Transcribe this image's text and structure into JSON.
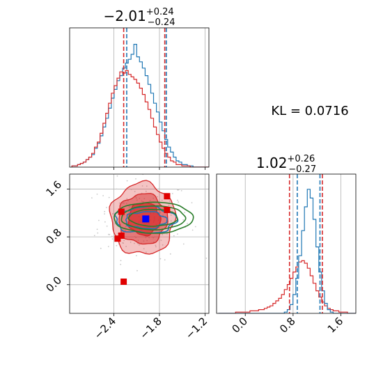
{
  "chart_data": {
    "type": "corner",
    "parameters": [
      "param_1",
      "param_2"
    ],
    "titles": [
      {
        "value": "−2.01",
        "plus": "+0.24",
        "minus": "−0.24"
      },
      {
        "value": "1.02",
        "plus": "+0.26",
        "minus": "−0.27"
      }
    ],
    "annotation": "KL = 0.0716",
    "colors": {
      "blue": "#1f77b4",
      "red": "#d62728",
      "green": "#2a7d2a",
      "grid": "#b0b0b0",
      "scatter": "#c8c8c8"
    },
    "x_ticks": {
      "param_1": {
        "values": [
          -2.4,
          -1.8,
          -1.2
        ],
        "labels": [
          "−2.4",
          "−1.8",
          "−1.2"
        ]
      },
      "param_2": {
        "values": [
          0.0,
          0.8,
          1.6
        ],
        "labels": [
          "0.0",
          "0.8",
          "1.6"
        ]
      }
    },
    "y_ticks": {
      "param_2": {
        "values": [
          0.0,
          0.8,
          1.6
        ],
        "labels": [
          "0.0",
          "0.8",
          "1.6"
        ]
      }
    },
    "ranges": {
      "param_1": [
        -2.98,
        -1.15
      ],
      "param_2": [
        -0.48,
        1.85
      ]
    },
    "grid": true,
    "marginal_1": {
      "x_start": -2.95,
      "bin_width": 0.037,
      "blue": [
        0.01,
        0.01,
        0.02,
        0.03,
        0.04,
        0.06,
        0.08,
        0.1,
        0.15,
        0.19,
        0.25,
        0.32,
        0.39,
        0.47,
        0.55,
        0.62,
        0.69,
        0.73,
        0.79,
        0.83,
        0.86,
        0.9,
        0.98,
        0.88,
        0.84,
        0.79,
        0.73,
        0.66,
        0.59,
        0.51,
        0.44,
        0.36,
        0.29,
        0.22,
        0.16,
        0.12,
        0.08,
        0.05,
        0.04,
        0.02,
        0.02,
        0.01,
        0.01,
        0.0,
        0.0,
        0.0,
        0.0,
        0.0,
        0.0
      ],
      "red": [
        0.01,
        0.01,
        0.02,
        0.03,
        0.04,
        0.06,
        0.08,
        0.11,
        0.16,
        0.2,
        0.27,
        0.35,
        0.43,
        0.51,
        0.59,
        0.65,
        0.71,
        0.76,
        0.75,
        0.77,
        0.74,
        0.72,
        0.7,
        0.67,
        0.63,
        0.58,
        0.52,
        0.46,
        0.39,
        0.32,
        0.26,
        0.2,
        0.15,
        0.11,
        0.08,
        0.05,
        0.04,
        0.02,
        0.02,
        0.01,
        0.01,
        0.01,
        0.0,
        0.0,
        0.0,
        0.0,
        0.0,
        0.0,
        0.0
      ],
      "quantiles_blue": [
        -2.23,
        -1.71
      ],
      "quantiles_red": [
        -2.27,
        -1.73
      ]
    },
    "marginal_2": {
      "x_start": -0.45,
      "bin_width": 0.048,
      "blue": [
        0,
        0,
        0,
        0,
        0,
        0,
        0,
        0,
        0,
        0,
        0,
        0,
        0,
        0,
        0,
        0,
        0,
        0,
        0,
        0,
        0,
        0,
        0,
        0.01,
        0.03,
        0.07,
        0.15,
        0.28,
        0.46,
        0.66,
        0.85,
        0.99,
        0.92,
        0.75,
        0.53,
        0.33,
        0.18,
        0.08,
        0.03,
        0.01,
        0,
        0,
        0,
        0,
        0,
        0,
        0,
        0,
        0
      ],
      "red": [
        0.0,
        0.0,
        0.0,
        0.0,
        0.0,
        0.0,
        0.01,
        0.01,
        0.01,
        0.01,
        0.01,
        0.02,
        0.02,
        0.02,
        0.03,
        0.03,
        0.04,
        0.05,
        0.06,
        0.08,
        0.1,
        0.12,
        0.15,
        0.19,
        0.23,
        0.28,
        0.33,
        0.37,
        0.41,
        0.42,
        0.4,
        0.36,
        0.3,
        0.24,
        0.18,
        0.13,
        0.09,
        0.06,
        0.04,
        0.03,
        0.02,
        0.02,
        0.01,
        0.01,
        0.01,
        0.0,
        0.0,
        0.0,
        0.0
      ],
      "quantiles_blue": [
        0.87,
        1.25
      ],
      "quantiles_red": [
        0.74,
        1.29
      ]
    },
    "joint": {
      "red_contours": [
        {
          "cx": -2.02,
          "cy": 1.1,
          "rx": 0.42,
          "ry": 0.6,
          "opacity": 0.35
        },
        {
          "cx": -2.02,
          "cy": 1.1,
          "rx": 0.32,
          "ry": 0.42,
          "opacity": 0.6
        },
        {
          "cx": -2.0,
          "cy": 1.1,
          "rx": 0.21,
          "ry": 0.27,
          "opacity": 0.85
        }
      ],
      "blue_contours": [
        {
          "cx": -1.98,
          "cy": 1.08,
          "rx": 0.4,
          "ry": 0.22
        },
        {
          "cx": -1.98,
          "cy": 1.08,
          "rx": 0.27,
          "ry": 0.14
        }
      ],
      "green_contours": [
        {
          "cx": -1.88,
          "cy": 1.12,
          "rx": 0.52,
          "ry": 0.26
        },
        {
          "cx": -1.88,
          "cy": 1.12,
          "rx": 0.42,
          "ry": 0.2
        },
        {
          "cx": -1.88,
          "cy": 1.12,
          "rx": 0.32,
          "ry": 0.14
        }
      ],
      "blue_marker": {
        "x": -1.98,
        "y": 1.1
      },
      "red_markers": [
        {
          "x": -1.7,
          "y": 1.48
        },
        {
          "x": -1.7,
          "y": 1.25
        },
        {
          "x": -2.3,
          "y": 1.22
        },
        {
          "x": -2.35,
          "y": 0.77
        },
        {
          "x": -2.3,
          "y": 0.82
        },
        {
          "x": -2.27,
          "y": 0.05
        }
      ]
    }
  }
}
